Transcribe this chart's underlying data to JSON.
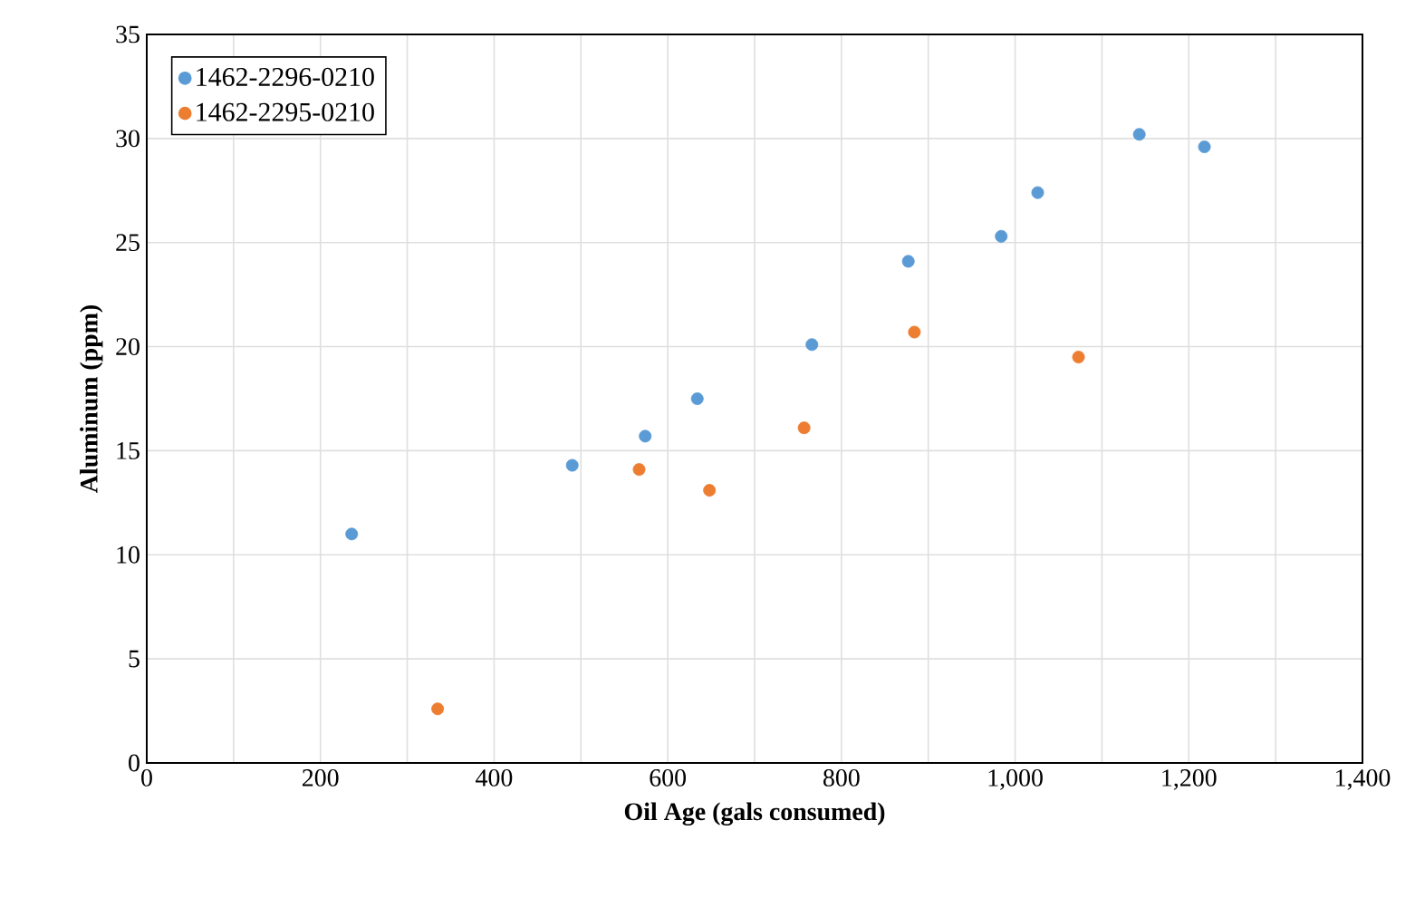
{
  "chart_data": {
    "type": "scatter",
    "xlabel": "Oil Age (gals consumed)",
    "ylabel": "Aluminum  (ppm)",
    "xlim": [
      0,
      1400
    ],
    "ylim": [
      0,
      35
    ],
    "xticks": [
      0,
      {
        "value": 100,
        "label": null
      },
      200,
      {
        "value": 300,
        "label": null
      },
      400,
      {
        "value": 500,
        "label": null
      },
      600,
      {
        "value": 700,
        "label": null
      },
      800,
      {
        "value": 900,
        "label": null
      },
      {
        "value": 1000,
        "label": "1,000"
      },
      {
        "value": 1100,
        "label": null
      },
      {
        "value": 1200,
        "label": "1,200"
      },
      {
        "value": 1300,
        "label": null
      },
      {
        "value": 1400,
        "label": "1,400"
      }
    ],
    "yticks": [
      0,
      5,
      10,
      15,
      20,
      25,
      30,
      35
    ],
    "grid": true,
    "legend": "top left",
    "series": [
      {
        "name": "1462-2296-0210",
        "color": "#5b9bd5",
        "x": [
          236,
          490,
          574,
          634,
          766,
          877,
          984,
          1026,
          1143,
          1218
        ],
        "values": [
          11.0,
          14.3,
          15.7,
          17.5,
          20.1,
          24.1,
          25.3,
          27.4,
          30.2,
          29.6
        ]
      },
      {
        "name": "1462-2295-0210",
        "color": "#ed7d31",
        "x": [
          335,
          567,
          648,
          757,
          884,
          1073
        ],
        "values": [
          2.6,
          14.1,
          13.1,
          16.1,
          20.7,
          19.5
        ]
      }
    ]
  }
}
